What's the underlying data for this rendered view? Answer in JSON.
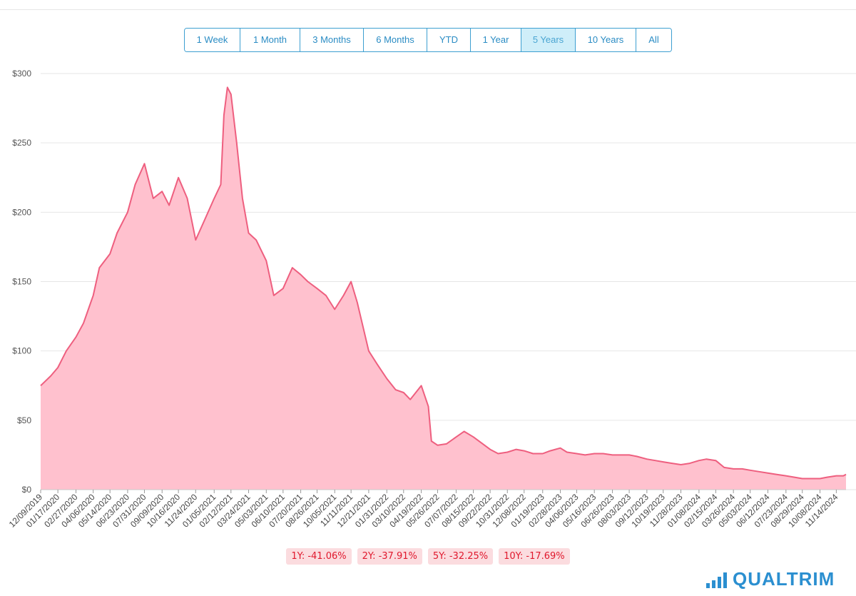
{
  "range_buttons": [
    {
      "label": "1 Week",
      "active": false
    },
    {
      "label": "1 Month",
      "active": false
    },
    {
      "label": "3 Months",
      "active": false
    },
    {
      "label": "6 Months",
      "active": false
    },
    {
      "label": "YTD",
      "active": false
    },
    {
      "label": "1 Year",
      "active": false
    },
    {
      "label": "5 Years",
      "active": true
    },
    {
      "label": "10 Years",
      "active": false
    },
    {
      "label": "All",
      "active": false
    }
  ],
  "chart_data": {
    "type": "area",
    "title": "",
    "xlabel": "",
    "ylabel": "",
    "ylim": [
      0,
      300
    ],
    "y_ticks": [
      "$0",
      "$50",
      "$100",
      "$150",
      "$200",
      "$250",
      "$300"
    ],
    "x_tick_labels": [
      "12/09/2019",
      "01/17/2020",
      "02/27/2020",
      "04/06/2020",
      "05/14/2020",
      "06/23/2020",
      "07/31/2020",
      "09/09/2020",
      "10/16/2020",
      "11/24/2020",
      "01/05/2021",
      "02/12/2021",
      "03/24/2021",
      "05/03/2021",
      "06/10/2021",
      "07/20/2021",
      "08/26/2021",
      "10/05/2021",
      "11/11/2021",
      "12/21/2021",
      "01/31/2022",
      "03/10/2022",
      "04/19/2022",
      "05/26/2022",
      "07/07/2022",
      "08/15/2022",
      "09/22/2022",
      "10/31/2022",
      "12/08/2022",
      "01/19/2023",
      "02/28/2023",
      "04/06/2023",
      "05/16/2023",
      "06/26/2023",
      "08/03/2023",
      "09/12/2023",
      "10/19/2023",
      "11/28/2023",
      "01/08/2024",
      "02/15/2024",
      "03/26/2024",
      "05/03/2024",
      "06/12/2024",
      "07/23/2024",
      "08/29/2024",
      "10/08/2024",
      "11/14/2024"
    ],
    "grid": true,
    "legend": "none",
    "series": [
      {
        "line_color": "#ee5f7f",
        "fill_color": "#ffc1ce",
        "x": [
          "12/09/2019",
          "01/01/2020",
          "01/17/2020",
          "02/05/2020",
          "02/27/2020",
          "03/15/2020",
          "04/06/2020",
          "04/20/2020",
          "05/14/2020",
          "05/30/2020",
          "06/23/2020",
          "07/10/2020",
          "07/31/2020",
          "08/20/2020",
          "09/09/2020",
          "09/25/2020",
          "10/16/2020",
          "11/05/2020",
          "11/24/2020",
          "12/15/2020",
          "01/05/2021",
          "01/20/2021",
          "01/27/2021",
          "02/04/2021",
          "02/12/2021",
          "02/25/2021",
          "03/10/2021",
          "03/24/2021",
          "04/10/2021",
          "05/03/2021",
          "05/20/2021",
          "06/10/2021",
          "07/01/2021",
          "07/20/2021",
          "08/05/2021",
          "08/26/2021",
          "09/15/2021",
          "10/05/2021",
          "10/25/2021",
          "11/11/2021",
          "11/25/2021",
          "12/21/2021",
          "01/10/2022",
          "01/31/2022",
          "02/20/2022",
          "03/10/2022",
          "03/25/2022",
          "04/19/2022",
          "05/05/2022",
          "05/12/2022",
          "05/26/2022",
          "06/15/2022",
          "07/07/2022",
          "07/25/2022",
          "08/15/2022",
          "09/01/2022",
          "09/22/2022",
          "10/10/2022",
          "10/31/2022",
          "11/20/2022",
          "12/08/2022",
          "12/28/2022",
          "01/19/2023",
          "02/05/2023",
          "02/28/2023",
          "03/15/2023",
          "04/06/2023",
          "04/25/2023",
          "05/16/2023",
          "06/05/2023",
          "06/26/2023",
          "07/15/2023",
          "08/03/2023",
          "08/20/2023",
          "09/12/2023",
          "10/01/2023",
          "10/19/2023",
          "11/08/2023",
          "11/28/2023",
          "12/18/2023",
          "01/08/2024",
          "01/25/2024",
          "02/15/2024",
          "03/05/2024",
          "03/26/2024",
          "04/15/2024",
          "05/03/2024",
          "05/22/2024",
          "06/12/2024",
          "07/01/2024",
          "07/23/2024",
          "08/10/2024",
          "08/29/2024",
          "09/18/2024",
          "10/08/2024",
          "10/25/2024",
          "11/14/2024",
          "11/30/2024",
          "12/06/2024"
        ],
        "values": [
          75,
          82,
          88,
          100,
          110,
          120,
          140,
          160,
          170,
          185,
          200,
          220,
          235,
          210,
          215,
          205,
          225,
          210,
          180,
          195,
          210,
          220,
          270,
          290,
          285,
          250,
          210,
          185,
          180,
          165,
          140,
          145,
          160,
          155,
          150,
          145,
          140,
          130,
          140,
          150,
          135,
          100,
          90,
          80,
          72,
          70,
          65,
          75,
          60,
          35,
          32,
          33,
          38,
          42,
          38,
          34,
          29,
          26,
          27,
          29,
          28,
          26,
          26,
          28,
          30,
          27,
          26,
          25,
          26,
          26,
          25,
          25,
          25,
          24,
          22,
          21,
          20,
          19,
          18,
          19,
          21,
          22,
          21,
          16,
          15,
          15,
          14,
          13,
          12,
          11,
          10,
          9,
          8,
          8,
          8,
          9,
          10,
          10,
          11
        ]
      }
    ]
  },
  "stats": [
    "1Y: -41.06%",
    "2Y: -37.91%",
    "5Y: -32.25%",
    "10Y: -17.69%"
  ],
  "brand": "QUALTRIM",
  "brand_color": "#2b8fd0"
}
